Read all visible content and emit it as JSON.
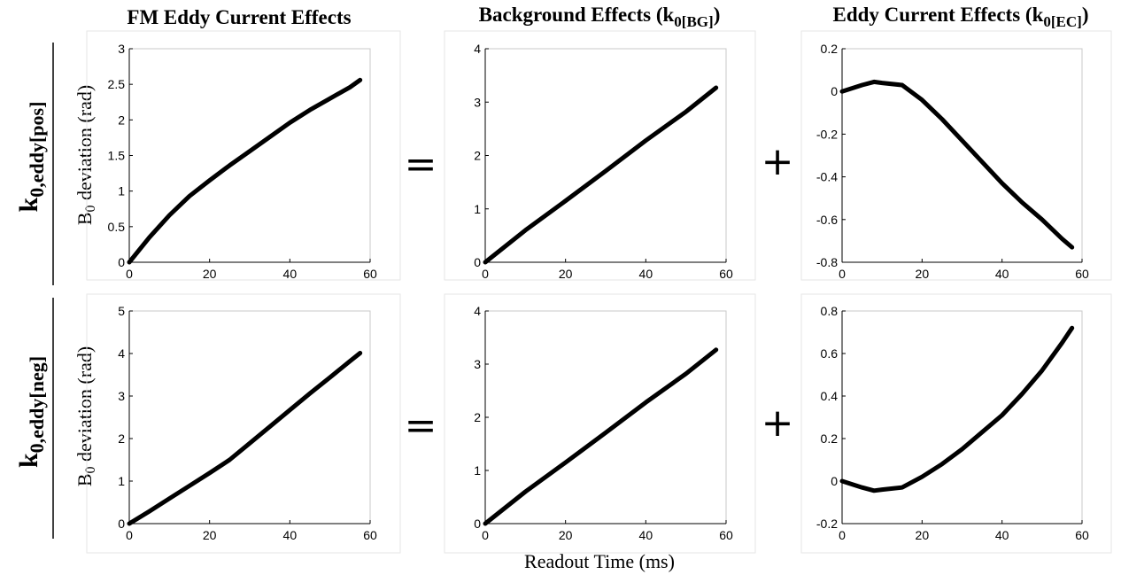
{
  "col_titles": {
    "fm": {
      "main": "FM Eddy Current Effects"
    },
    "bg": {
      "main": "Background Effects  (k",
      "sub": "0[BG]",
      "tail": ")"
    },
    "ec": {
      "main": "Eddy Current Effects (k",
      "sub": "0[EC]",
      "tail": ")"
    }
  },
  "row_labels": {
    "pos": {
      "main": "k",
      "sub": "0,eddy[pos]"
    },
    "neg": {
      "main": "k",
      "sub": "0,eddy[neg]"
    }
  },
  "ylabel": {
    "main": "B",
    "sub": "0",
    "tail": " deviation (rad)"
  },
  "xlabel": "Readout Time (ms)",
  "operators": {
    "equals": "=",
    "plus": "+"
  },
  "chart_data": [
    {
      "id": "fm-pos",
      "type": "line",
      "xlim": [
        0,
        60
      ],
      "ylim": [
        0,
        3
      ],
      "xticks": [
        0,
        20,
        40,
        60
      ],
      "yticks": [
        0,
        0.5,
        1,
        1.5,
        2,
        2.5,
        3
      ],
      "xticklabels": [
        "0",
        "20",
        "40",
        "60"
      ],
      "yticklabels": [
        "0",
        "0.5",
        "1",
        "1.5",
        "2",
        "2.5",
        "3"
      ],
      "x": [
        0,
        5,
        10,
        15,
        20,
        25,
        30,
        35,
        40,
        45,
        50,
        55,
        57.5
      ],
      "y": [
        0,
        0.35,
        0.66,
        0.93,
        1.15,
        1.36,
        1.56,
        1.76,
        1.96,
        2.14,
        2.3,
        2.46,
        2.56
      ]
    },
    {
      "id": "bg-pos",
      "type": "line",
      "xlim": [
        0,
        60
      ],
      "ylim": [
        0,
        4
      ],
      "xticks": [
        0,
        20,
        40,
        60
      ],
      "yticks": [
        0,
        1,
        2,
        3,
        4
      ],
      "xticklabels": [
        "0",
        "20",
        "40",
        "60"
      ],
      "yticklabels": [
        "0",
        "1",
        "2",
        "3",
        "4"
      ],
      "x": [
        0,
        10,
        20,
        30,
        40,
        50,
        57.5
      ],
      "y": [
        0,
        0.6,
        1.15,
        1.71,
        2.28,
        2.82,
        3.27
      ]
    },
    {
      "id": "ec-pos",
      "type": "line",
      "xlim": [
        0,
        60
      ],
      "ylim": [
        -0.8,
        0.2
      ],
      "xticks": [
        0,
        20,
        40,
        60
      ],
      "yticks": [
        -0.8,
        -0.6,
        -0.4,
        -0.2,
        0,
        0.2
      ],
      "xticklabels": [
        "0",
        "20",
        "40",
        "60"
      ],
      "yticklabels": [
        "-0.8",
        "-0.6",
        "-0.4",
        "-0.2",
        "0",
        "0.2"
      ],
      "x": [
        0,
        5,
        8,
        10,
        15,
        20,
        25,
        30,
        35,
        40,
        45,
        50,
        55,
        57.5
      ],
      "y": [
        0,
        0.03,
        0.045,
        0.04,
        0.03,
        -0.04,
        -0.13,
        -0.23,
        -0.33,
        -0.43,
        -0.52,
        -0.6,
        -0.69,
        -0.73
      ]
    },
    {
      "id": "fm-neg",
      "type": "line",
      "xlim": [
        0,
        60
      ],
      "ylim": [
        0,
        5
      ],
      "xticks": [
        0,
        20,
        40,
        60
      ],
      "yticks": [
        0,
        1,
        2,
        3,
        4,
        5
      ],
      "xticklabels": [
        "0",
        "20",
        "40",
        "60"
      ],
      "yticklabels": [
        "0",
        "1",
        "2",
        "3",
        "4",
        "5"
      ],
      "x": [
        0,
        5,
        10,
        15,
        20,
        25,
        30,
        35,
        40,
        45,
        50,
        55,
        57.5
      ],
      "y": [
        0,
        0.29,
        0.59,
        0.89,
        1.19,
        1.5,
        1.89,
        2.28,
        2.67,
        3.06,
        3.44,
        3.82,
        4.01
      ]
    },
    {
      "id": "bg-neg",
      "type": "line",
      "xlim": [
        0,
        60
      ],
      "ylim": [
        0,
        4
      ],
      "xticks": [
        0,
        20,
        40,
        60
      ],
      "yticks": [
        0,
        1,
        2,
        3,
        4
      ],
      "xticklabels": [
        "0",
        "20",
        "40",
        "60"
      ],
      "yticklabels": [
        "0",
        "1",
        "2",
        "3",
        "4"
      ],
      "x": [
        0,
        10,
        20,
        30,
        40,
        50,
        57.5
      ],
      "y": [
        0,
        0.6,
        1.15,
        1.71,
        2.28,
        2.82,
        3.27
      ]
    },
    {
      "id": "ec-neg",
      "type": "line",
      "xlim": [
        0,
        60
      ],
      "ylim": [
        -0.2,
        0.8
      ],
      "xticks": [
        0,
        20,
        40,
        60
      ],
      "yticks": [
        -0.2,
        0,
        0.2,
        0.4,
        0.6,
        0.8
      ],
      "xticklabels": [
        "0",
        "20",
        "40",
        "60"
      ],
      "yticklabels": [
        "-0.2",
        "0",
        "0.2",
        "0.4",
        "0.6",
        "0.8"
      ],
      "x": [
        0,
        5,
        8,
        10,
        15,
        20,
        25,
        30,
        35,
        40,
        45,
        50,
        55,
        57.5
      ],
      "y": [
        0,
        -0.03,
        -0.045,
        -0.04,
        -0.03,
        0.02,
        0.08,
        0.15,
        0.23,
        0.31,
        0.41,
        0.52,
        0.65,
        0.72
      ]
    }
  ]
}
